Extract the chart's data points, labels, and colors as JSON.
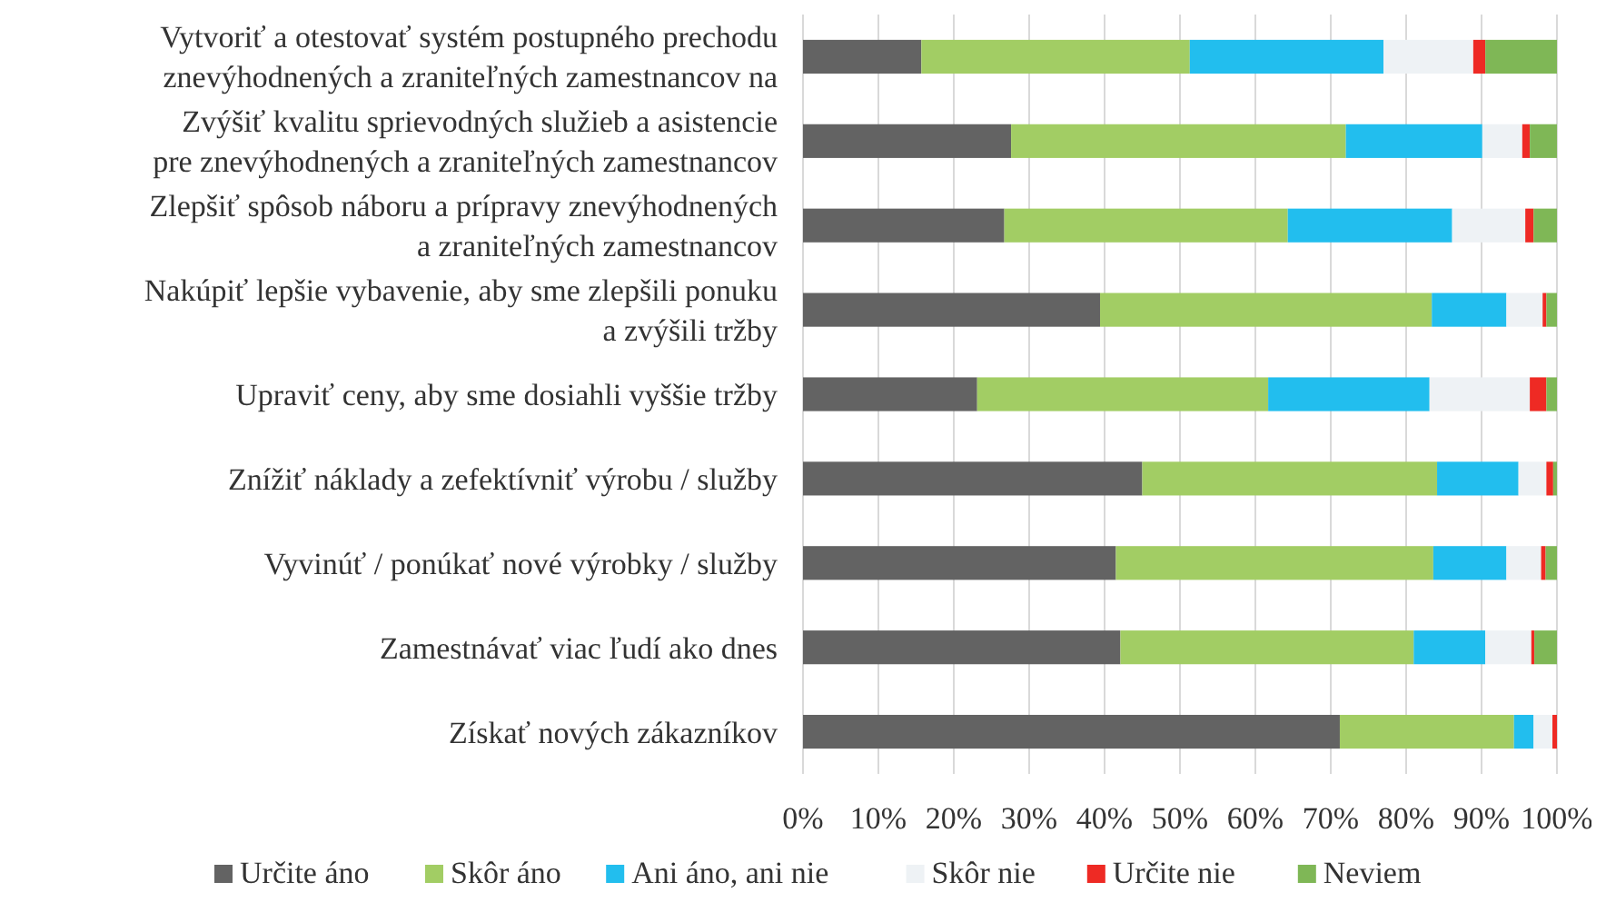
{
  "chart_data": {
    "type": "bar",
    "orientation": "horizontal",
    "stacked": true,
    "categories": [
      "Vytvoriť a otestovať systém postupného prechodu\nznevýhodnených a zraniteľných zamestnancov na",
      "Zvýšiť kvalitu sprievodných služieb a asistencie\npre znevýhodnených a zraniteľných zamestnancov",
      "Zlepšiť spôsob náboru a prípravy znevýhodnených\na zraniteľných zamestnancov",
      "Nakúpiť lepšie vybavenie, aby sme zlepšili ponuku\na zvýšili tržby",
      "Upraviť ceny, aby sme dosiahli vyššie tržby",
      "Znížiť náklady a zefektívniť výrobu / služby",
      "Vyvinúť / ponúkať nové výrobky / služby",
      "Zamestnávať viac ľudí ako dnes",
      "Získať nových zákazníkov"
    ],
    "series": [
      {
        "name": "Určite áno",
        "color": "#636363",
        "values": [
          15.7,
          27.6,
          26.7,
          39.4,
          23.1,
          45.0,
          41.5,
          42.1,
          71.2
        ]
      },
      {
        "name": "Skôr áno",
        "color": "#a2cd64",
        "values": [
          35.6,
          44.4,
          37.6,
          44.0,
          38.6,
          39.1,
          42.1,
          38.9,
          23.1
        ]
      },
      {
        "name": "Ani áno, ani nie",
        "color": "#22beee",
        "values": [
          25.7,
          18.1,
          21.8,
          9.9,
          21.4,
          10.8,
          9.7,
          9.5,
          2.6
        ]
      },
      {
        "name": "Skôr nie",
        "color": "#eef2f5",
        "values": [
          11.9,
          5.3,
          9.7,
          4.8,
          13.3,
          3.7,
          4.6,
          6.1,
          2.5
        ]
      },
      {
        "name": "Určite nie",
        "color": "#ee2a24",
        "values": [
          1.6,
          1.0,
          1.1,
          0.5,
          2.2,
          0.9,
          0.6,
          0.4,
          0.6
        ]
      },
      {
        "name": "Neviem",
        "color": "#7fb756",
        "values": [
          9.5,
          3.6,
          3.1,
          1.4,
          1.4,
          0.5,
          1.5,
          3.0,
          0
        ]
      }
    ],
    "xlim": [
      0,
      100
    ],
    "xticks": [
      {
        "value": 0,
        "label": "0%"
      },
      {
        "value": 10,
        "label": "10%"
      },
      {
        "value": 20,
        "label": "20%"
      },
      {
        "value": 30,
        "label": "30%"
      },
      {
        "value": 40,
        "label": "40%"
      },
      {
        "value": 50,
        "label": "50%"
      },
      {
        "value": 60,
        "label": "60%"
      },
      {
        "value": 70,
        "label": "70%"
      },
      {
        "value": 80,
        "label": "80%"
      },
      {
        "value": 90,
        "label": "90%"
      },
      {
        "value": 100,
        "label": "100%"
      }
    ],
    "grid": "x",
    "legend": "bottom"
  }
}
